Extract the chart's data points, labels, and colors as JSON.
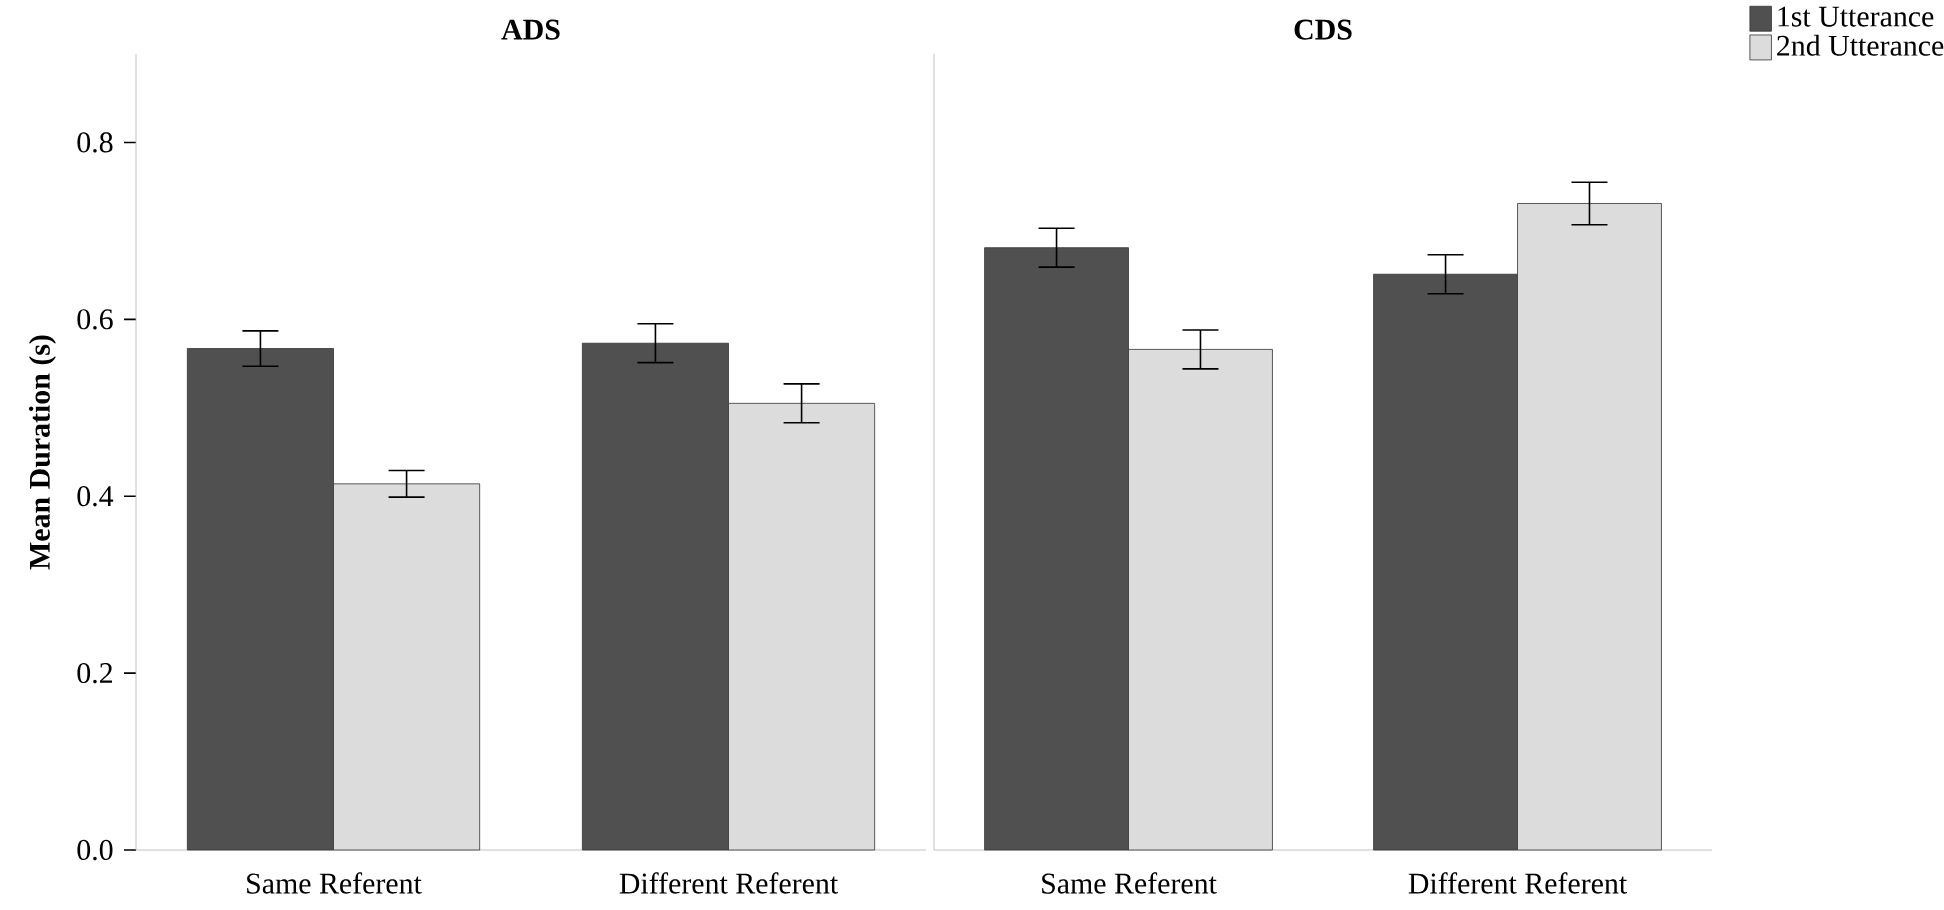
{
  "chart_data": [
    {
      "type": "bar",
      "title": "ADS",
      "ylabel": "Mean Duration (s)",
      "categories": [
        "Same Referent",
        "Different Referent"
      ],
      "series": [
        {
          "color": "#505050",
          "values": [
            0.567,
            0.573
          ],
          "errors": [
            0.02,
            0.022
          ]
        },
        {
          "color": "#dcdcdc",
          "values": [
            0.414,
            0.505
          ],
          "errors": [
            0.015,
            0.022
          ]
        }
      ],
      "ylim": [
        0,
        0.9
      ],
      "yticks": [
        {
          "value": 0,
          "label": "0.0"
        },
        0.2,
        0.4,
        0.6,
        0.8
      ],
      "tick_labels": true
    },
    {
      "type": "bar",
      "title": "CDS",
      "categories": [
        "Same Referent",
        "Different Referent"
      ],
      "series": [
        {
          "name": "1st Utterance",
          "color": "#505050",
          "values": [
            0.681,
            0.651
          ],
          "errors": [
            0.022,
            0.022
          ]
        },
        {
          "name": "2nd Utterance",
          "color": "#dcdcdc",
          "values": [
            0.566,
            0.731
          ],
          "errors": [
            0.022,
            0.024
          ]
        }
      ],
      "ylim": [
        0,
        0.9
      ],
      "legend": "top right",
      "tick_labels": "x"
    }
  ]
}
